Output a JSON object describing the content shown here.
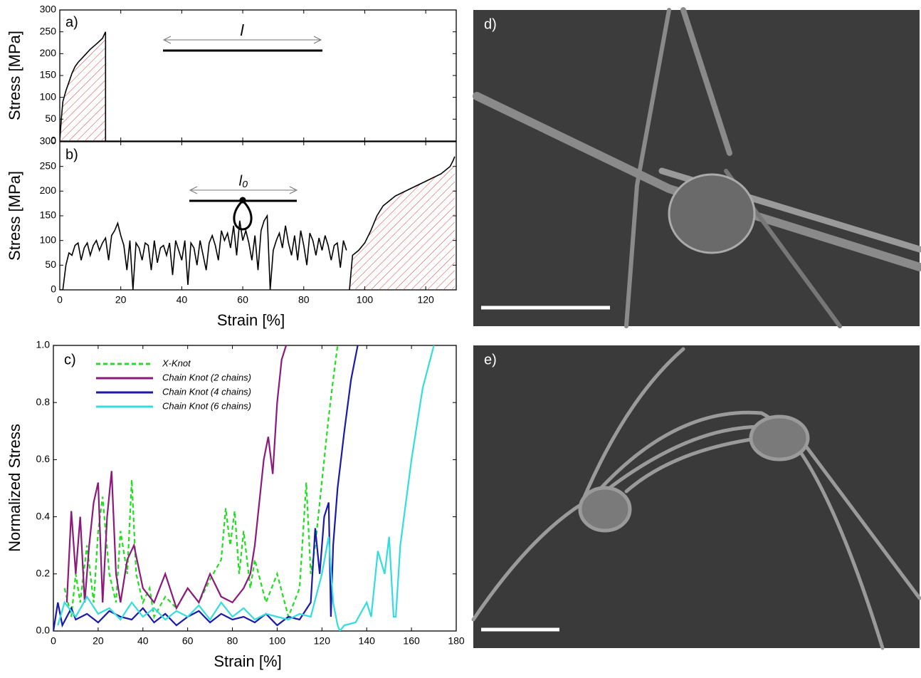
{
  "chart_data": [
    {
      "type": "line",
      "panel_label": "a)",
      "ylabel": "Stress [MPa]",
      "xlim": [
        0,
        130
      ],
      "ylim": [
        0,
        300
      ],
      "yticks": [
        0,
        50,
        100,
        150,
        200,
        250,
        300
      ],
      "annotation": "l",
      "series": [
        {
          "color": "#000000",
          "fill": "hatched",
          "x": [
            0,
            0.5,
            1,
            2,
            3,
            4,
            5,
            6,
            8,
            10,
            12,
            14,
            15,
            15
          ],
          "values": [
            0,
            50,
            90,
            115,
            135,
            155,
            170,
            180,
            195,
            210,
            222,
            235,
            250,
            0
          ]
        }
      ]
    },
    {
      "type": "line",
      "panel_label": "b)",
      "ylabel": "Stress [MPa]",
      "xlabel": "Strain [%]",
      "xlim": [
        0,
        130
      ],
      "ylim": [
        0,
        300
      ],
      "yticks": [
        0,
        50,
        100,
        150,
        200,
        250,
        300
      ],
      "xticks": [
        0,
        20,
        40,
        60,
        80,
        100,
        120
      ],
      "annotation": "l₀",
      "series": [
        {
          "color": "#000000",
          "x": [
            0,
            1,
            2,
            3,
            4,
            5,
            6,
            7,
            8,
            9,
            10,
            11,
            12,
            13,
            14,
            15,
            16,
            17,
            18,
            19,
            20,
            21,
            22,
            23,
            24,
            25,
            26,
            27,
            28,
            29,
            30,
            31,
            32,
            33,
            34,
            35,
            36,
            37,
            38,
            39,
            40,
            41,
            42,
            43,
            44,
            45,
            46,
            47,
            48,
            49,
            50,
            51,
            52,
            53,
            54,
            55,
            56,
            57,
            58,
            59,
            60,
            61,
            62,
            63,
            64,
            65,
            66,
            67,
            68,
            69,
            70,
            71,
            72,
            73,
            74,
            75,
            76,
            77,
            78,
            79,
            80,
            81,
            82,
            83,
            84,
            85,
            86,
            87,
            88,
            89,
            90,
            91,
            92,
            93,
            94
          ],
          "values": [
            0,
            0,
            50,
            75,
            70,
            90,
            95,
            60,
            85,
            95,
            70,
            90,
            100,
            80,
            95,
            105,
            60,
            110,
            120,
            135,
            110,
            90,
            40,
            100,
            0,
            95,
            85,
            60,
            95,
            90,
            40,
            100,
            55,
            85,
            90,
            70,
            95,
            30,
            100,
            80,
            60,
            100,
            10,
            95,
            85,
            50,
            100,
            70,
            40,
            95,
            110,
            90,
            60,
            120,
            100,
            115,
            85,
            130,
            70,
            140,
            100,
            120,
            95,
            60,
            110,
            40,
            120,
            140,
            150,
            0,
            80,
            100,
            115,
            85,
            130,
            95,
            70,
            110,
            60,
            120,
            90,
            50,
            115,
            100,
            70,
            105,
            80,
            110,
            90,
            60,
            90,
            95,
            45,
            100,
            80
          ]
        },
        {
          "color": "#000000",
          "fill": "hatched",
          "x": [
            95,
            96,
            98,
            100,
            102,
            104,
            106,
            108,
            110,
            115,
            120,
            125,
            128,
            129,
            129.5
          ],
          "values": [
            0,
            70,
            80,
            95,
            120,
            150,
            170,
            180,
            190,
            205,
            220,
            235,
            250,
            262,
            270
          ]
        }
      ]
    },
    {
      "type": "line",
      "panel_label": "c)",
      "ylabel": "Normalized Stress",
      "xlabel": "Strain [%]",
      "xlim": [
        0,
        180
      ],
      "ylim": [
        0,
        1
      ],
      "xticks": [
        0,
        20,
        40,
        60,
        80,
        100,
        120,
        140,
        160,
        180
      ],
      "yticks": [
        {
          "value": 0,
          "label": "0.0"
        },
        0.2,
        0.4,
        0.6,
        0.8,
        {
          "value": 1,
          "label": "1.0"
        }
      ],
      "legend": "upper left",
      "series": [
        {
          "name": "X-Knot",
          "color": "#22dd22",
          "dashed": true,
          "x": [
            5,
            8,
            10,
            12,
            15,
            18,
            20,
            22,
            25,
            28,
            30,
            33,
            35,
            37,
            40,
            43,
            45,
            50,
            55,
            60,
            65,
            70,
            75,
            77,
            79,
            81,
            83,
            85,
            88,
            90,
            95,
            100,
            105,
            110,
            113,
            115,
            117,
            119,
            121,
            123,
            125,
            127
          ],
          "values": [
            0.15,
            0.05,
            0.2,
            0.1,
            0.3,
            0.1,
            0.35,
            0.47,
            0.2,
            0.1,
            0.35,
            0.2,
            0.53,
            0.2,
            0.1,
            0.15,
            0.05,
            0.12,
            0.08,
            0.15,
            0.1,
            0.18,
            0.25,
            0.43,
            0.3,
            0.42,
            0.2,
            0.35,
            0.15,
            0.25,
            0.1,
            0.2,
            0.05,
            0.15,
            0.52,
            0.2,
            0.3,
            0.45,
            0.6,
            0.75,
            0.88,
            1.0
          ]
        },
        {
          "name": "Chain Knot (2 chains)",
          "color": "#8b1a7a",
          "x": [
            6,
            8,
            10,
            12,
            14,
            16,
            18,
            20,
            22,
            24,
            26,
            28,
            30,
            33,
            36,
            40,
            45,
            50,
            55,
            60,
            65,
            70,
            75,
            80,
            85,
            88,
            90,
            92,
            94,
            96,
            98,
            100,
            102,
            104
          ],
          "values": [
            0.1,
            0.42,
            0.2,
            0.4,
            0.1,
            0.3,
            0.45,
            0.52,
            0.1,
            0.4,
            0.56,
            0.2,
            0.1,
            0.25,
            0.3,
            0.15,
            0.1,
            0.2,
            0.08,
            0.15,
            0.1,
            0.2,
            0.12,
            0.1,
            0.15,
            0.2,
            0.3,
            0.45,
            0.6,
            0.68,
            0.55,
            0.8,
            0.95,
            1.0
          ]
        },
        {
          "name": "Chain Knot (4 chains)",
          "color": "#1a1aaa",
          "x": [
            0,
            2,
            4,
            6,
            8,
            10,
            15,
            20,
            25,
            30,
            35,
            40,
            45,
            50,
            55,
            60,
            65,
            70,
            75,
            80,
            85,
            90,
            95,
            100,
            105,
            110,
            115,
            117,
            119,
            121,
            123,
            124,
            125,
            127,
            130,
            133,
            136
          ],
          "values": [
            0,
            0.1,
            0.02,
            0.05,
            0.08,
            0.04,
            0.06,
            0.03,
            0.07,
            0.05,
            0.04,
            0.08,
            0.03,
            0.06,
            0.02,
            0.05,
            0.07,
            0.03,
            0.06,
            0.04,
            0.05,
            0.03,
            0.06,
            0.02,
            0.05,
            0.04,
            0.1,
            0.36,
            0.2,
            0.4,
            0.45,
            0.05,
            0.3,
            0.5,
            0.7,
            0.88,
            1.0
          ]
        },
        {
          "name": "Chain Knot (6 chains)",
          "color": "#33dddd",
          "x": [
            2,
            5,
            10,
            15,
            20,
            25,
            30,
            35,
            40,
            45,
            50,
            55,
            60,
            65,
            70,
            75,
            80,
            85,
            90,
            95,
            100,
            105,
            110,
            115,
            120,
            123,
            125,
            127,
            128,
            130,
            135,
            140,
            142,
            145,
            148,
            150,
            152,
            153,
            155,
            160,
            165,
            170
          ],
          "values": [
            0.02,
            0.1,
            0.05,
            0.12,
            0.06,
            0.08,
            0.04,
            0.1,
            0.05,
            0.08,
            0.04,
            0.07,
            0.05,
            0.09,
            0.04,
            0.1,
            0.05,
            0.08,
            0.04,
            0.06,
            0.05,
            0.04,
            0.06,
            0.05,
            0.2,
            0.33,
            0.1,
            0.02,
            0,
            0.02,
            0.03,
            0.1,
            0.05,
            0.28,
            0.2,
            0.33,
            0.05,
            0.05,
            0.3,
            0.6,
            0.85,
            1.0
          ]
        }
      ]
    }
  ],
  "images": [
    {
      "label": "d)"
    },
    {
      "label": "e)"
    }
  ]
}
